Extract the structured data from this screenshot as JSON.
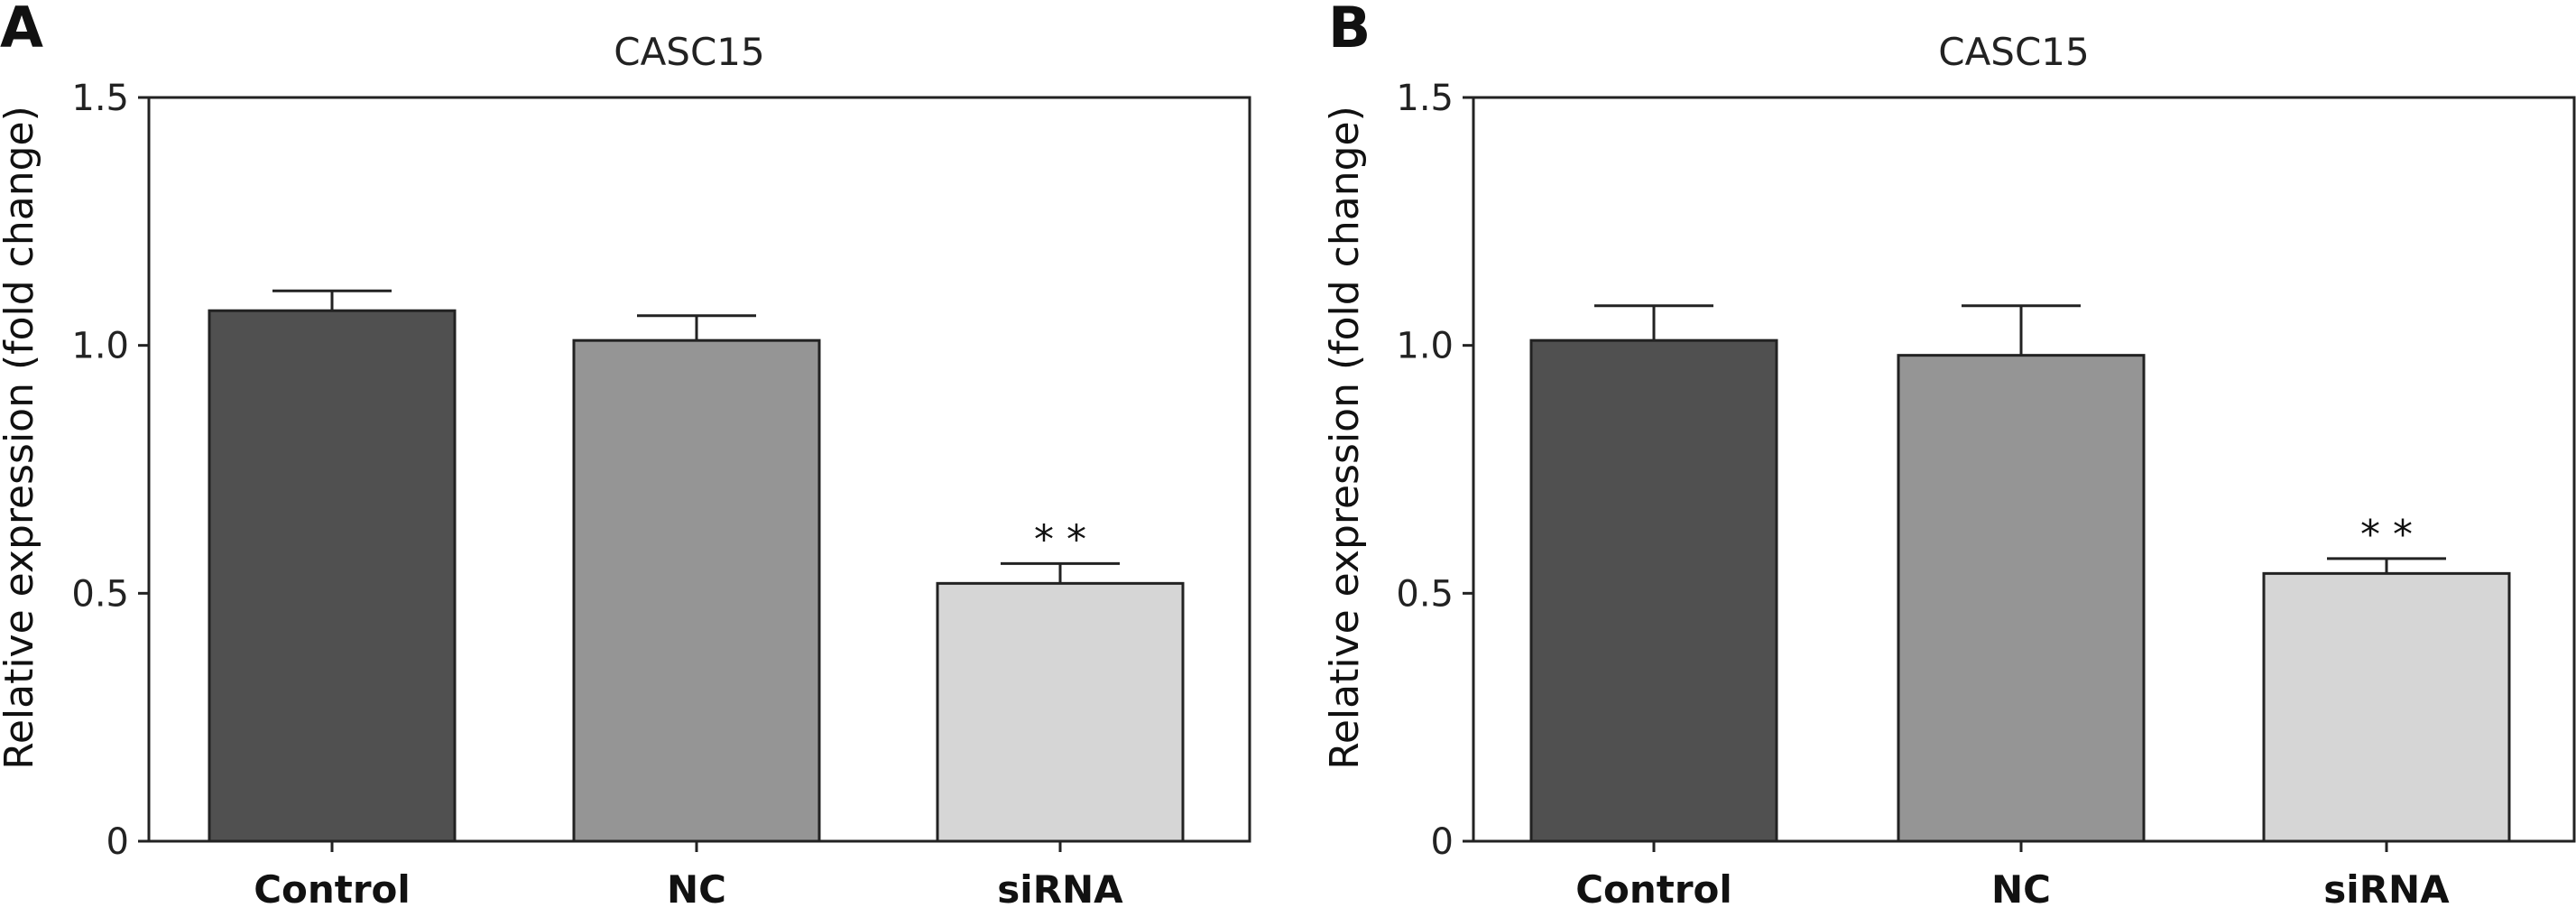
{
  "chart_data": [
    {
      "type": "bar",
      "panel": "A",
      "title": "CASC15",
      "ylabel": "Relative expression (fold change)",
      "categories": [
        "Control",
        "NC",
        "siRNA"
      ],
      "values": [
        1.07,
        1.01,
        0.52
      ],
      "error": [
        0.04,
        0.05,
        0.04
      ],
      "significance": [
        "",
        "",
        "* *"
      ],
      "colors": [
        "#505050",
        "#959595",
        "#d6d6d6"
      ],
      "ylim": [
        0,
        1.5
      ],
      "yticks": [
        0,
        0.5,
        1.0,
        1.5
      ],
      "ytick_labels": [
        "0",
        "0.5",
        "1.0",
        "1.5"
      ],
      "grid": false,
      "legend": "none"
    },
    {
      "type": "bar",
      "panel": "B",
      "title": "CASC15",
      "ylabel": "Relative expression (fold change)",
      "categories": [
        "Control",
        "NC",
        "siRNA"
      ],
      "values": [
        1.01,
        0.98,
        0.54
      ],
      "error": [
        0.07,
        0.1,
        0.03
      ],
      "significance": [
        "",
        "",
        "* *"
      ],
      "colors": [
        "#505050",
        "#959595",
        "#d6d6d6"
      ],
      "ylim": [
        0,
        1.5
      ],
      "yticks": [
        0,
        0.5,
        1.0,
        1.5
      ],
      "ytick_labels": [
        "0",
        "0.5",
        "1.0",
        "1.5"
      ],
      "grid": false,
      "legend": "none"
    }
  ]
}
